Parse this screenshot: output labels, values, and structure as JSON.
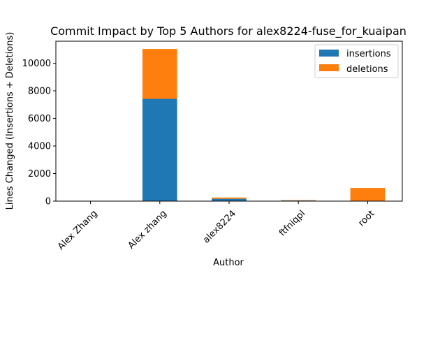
{
  "chart_data": {
    "type": "bar",
    "stacked": true,
    "title": "Commit Impact by Top 5 Authors for alex8224-fuse_for_kuaipan",
    "xlabel": "Author",
    "ylabel": "Lines Changed (Insertions + Deletions)",
    "categories": [
      "Alex Zhang",
      "Alex zhang",
      "alex8224",
      "ftfniqpl",
      "root"
    ],
    "series": [
      {
        "name": "insertions",
        "color": "#1f77b4",
        "values": [
          5,
          7420,
          170,
          45,
          0
        ]
      },
      {
        "name": "deletions",
        "color": "#ff7f0e",
        "values": [
          3,
          3620,
          90,
          25,
          960
        ]
      }
    ],
    "ylim": [
      0,
      11600
    ],
    "yticks": [
      0,
      2000,
      4000,
      6000,
      8000,
      10000
    ],
    "legend_position": "top-right",
    "grid": false
  }
}
